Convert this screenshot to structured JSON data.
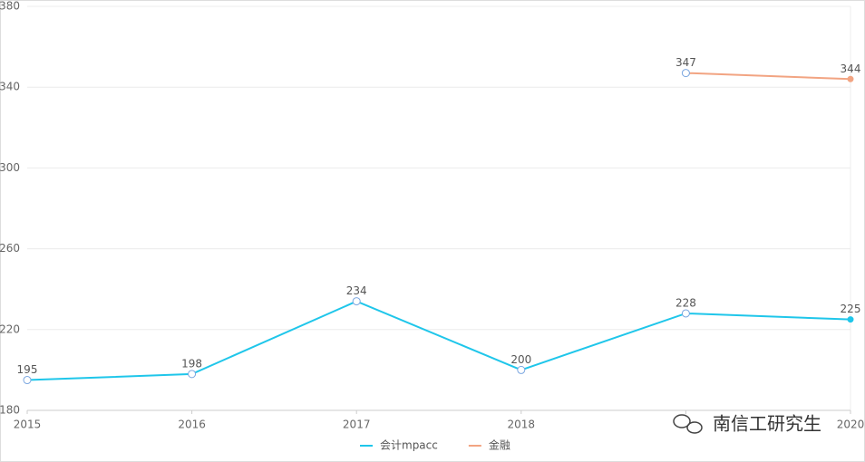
{
  "chart_data": {
    "type": "line",
    "categories": [
      "2015",
      "2016",
      "2017",
      "2018",
      null,
      "2020"
    ],
    "series": [
      {
        "name": "会计mpacc",
        "color": "#1fc6ea",
        "values": [
          195,
          198,
          234,
          200,
          228,
          225
        ]
      },
      {
        "name": "金融",
        "color": "#f2a482",
        "values": [
          null,
          null,
          null,
          null,
          347,
          344
        ]
      }
    ],
    "ylim": [
      180,
      380
    ],
    "yticks": [
      180,
      220,
      260,
      300,
      340,
      380
    ],
    "grid": true
  },
  "watermark": "南信工研究生"
}
